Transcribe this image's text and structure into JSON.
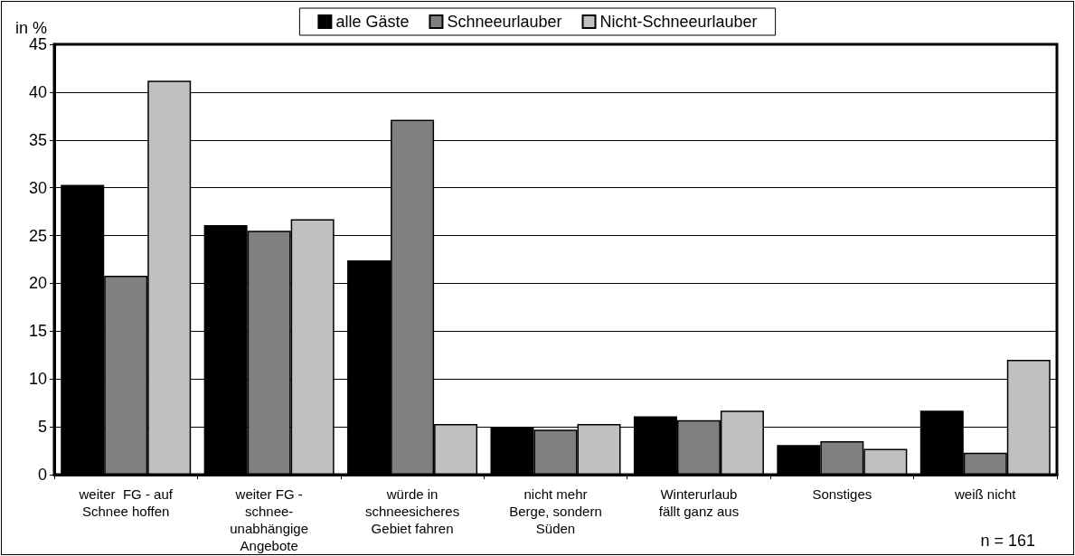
{
  "chart_data": {
    "type": "bar",
    "ylabel": "in %",
    "categories": [
      "weiter  FG - auf\nSchnee hoffen",
      "weiter FG -\nschnee-\nunabhängige\nAngebote",
      "würde in\nschneesicheres\nGebiet fahren",
      "nicht mehr\nBerge, sondern\nSüden",
      "Winterurlaub\nfällt ganz aus",
      "Sonstiges",
      "weiß nicht"
    ],
    "series": [
      {
        "name": "alle Gäste",
        "color": "#000000",
        "values": [
          30.3,
          26.1,
          22.4,
          5.0,
          6.1,
          3.1,
          6.7
        ]
      },
      {
        "name": "Schneeurlauber",
        "color": "#808080",
        "values": [
          20.8,
          25.5,
          37.1,
          4.7,
          5.7,
          3.5,
          2.3
        ]
      },
      {
        "name": "Nicht-Schneeurlauber",
        "color": "#c0c0c0",
        "values": [
          41.2,
          26.7,
          5.3,
          5.3,
          6.7,
          2.7,
          12.0
        ]
      }
    ],
    "ylim": [
      0,
      45
    ],
    "yticks": [
      0,
      5,
      10,
      15,
      20,
      25,
      30,
      35,
      40,
      45
    ],
    "grid": "y",
    "legend": "top",
    "annotations": [
      "n = 161"
    ]
  }
}
